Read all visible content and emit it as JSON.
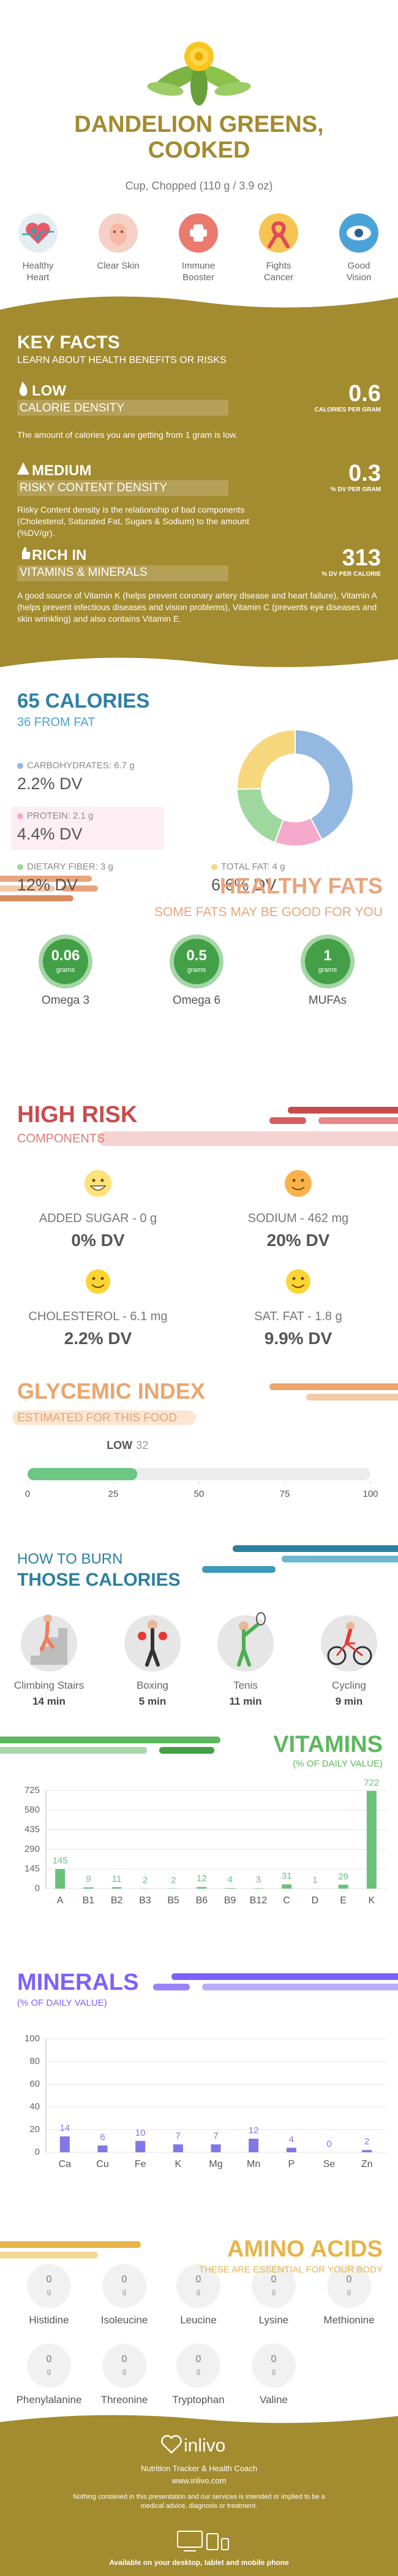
{
  "header": {
    "title": "DANDELION GREENS, COOKED",
    "serving": "Cup, Chopped (110 g / 3.9 oz)",
    "benefits": [
      "Healthy Heart",
      "Clear Skin",
      "Immune Booster",
      "Fights Cancer",
      "Good Vision"
    ]
  },
  "key_facts": {
    "title": "KEY FACTS",
    "subtitle": "LEARN ABOUT HEALTH BENEFITS OR RISKS",
    "items": [
      {
        "level": "LOW",
        "label": "CALORIE DENSITY",
        "value": 0.6,
        "unit": "CALORIES PER GRAM",
        "text": "The amount of calories you are getting from 1 gram is low."
      },
      {
        "level": "MEDIUM",
        "label": "RISKY CONTENT DENSITY",
        "value": 0.3,
        "unit": "% DV PER GRAM",
        "text": "Risky Content density is the relationship of bad components (Cholesterol, Saturated Fat, Sugars & Sodium) to the amount (%DV/gr)."
      },
      {
        "level": "RICH IN",
        "label": "VITAMINS & MINERALS",
        "value": 313,
        "unit": "% DV PER CALORIE",
        "text": "A good source of Vitamin K (helps prevent coronary artery disease and heart failure), Vitamin A (helps prevent infectious diseases and vision problems), Vitamin C (prevents eye diseases and skin wrinkling) and also contains Vitamin E."
      }
    ]
  },
  "chart_data": [
    {
      "type": "pie",
      "title": "65 CALORIES",
      "subtitle": "36 FROM FAT",
      "values": [
        6.7,
        2.1,
        3,
        4
      ],
      "value_labels": [
        "CARBOHYDRATES: 6.7 g",
        "PROTEIN: 2.1 g",
        "DIETARY FIBER: 3 g",
        "TOTAL FAT: 4 g"
      ],
      "dv_labels": [
        "2.2% DV",
        "4.4% DV",
        "12% DV",
        "6.6% DV"
      ],
      "colors": [
        "#93b9e3",
        "#f5a9cb",
        "#9fd89e",
        "#f6d77c"
      ]
    },
    {
      "type": "progress",
      "title": "GLYCEMIC INDEX",
      "subtitle": "ESTIMATED FOR THIS FOOD",
      "label": "LOW",
      "value": 32,
      "xlim": [
        0,
        100
      ],
      "xticks": [
        0,
        25,
        50,
        75,
        100
      ],
      "color": "#6cc784"
    },
    {
      "type": "bar",
      "title": "VITAMINS",
      "subtitle": "(% OF DAILY VALUE)",
      "categories": [
        "A",
        "B1",
        "B2",
        "B3",
        "B5",
        "B6",
        "B9",
        "B12",
        "C",
        "D",
        "E",
        "K"
      ],
      "values": [
        145,
        9,
        11,
        2,
        2,
        12,
        4,
        3,
        31,
        1,
        29,
        722
      ],
      "ylim": [
        0,
        725
      ],
      "yticks": [
        0,
        145,
        290,
        435,
        580,
        725
      ],
      "color": "#6cc17a",
      "grid": true
    },
    {
      "type": "bar",
      "title": "MINERALS",
      "subtitle": "(% OF DAILY VALUE)",
      "categories": [
        "Ca",
        "Cu",
        "Fe",
        "K",
        "Mg",
        "Mn",
        "P",
        "Se",
        "Zn"
      ],
      "values": [
        14,
        6,
        10,
        7,
        7,
        12,
        4,
        0,
        2
      ],
      "ylim": [
        0,
        100
      ],
      "yticks": [
        0,
        20,
        40,
        60,
        80,
        100
      ],
      "color": "#8277e8",
      "grid": true
    }
  ],
  "healthy_fats": {
    "title": "HEALTHY FATS",
    "subtitle": "SOME FATS MAY BE GOOD FOR YOU",
    "items": [
      {
        "value": 0.06,
        "unit": "grams",
        "name": "Omega 3"
      },
      {
        "value": 0.5,
        "unit": "grams",
        "name": "Omega 6"
      },
      {
        "value": 1,
        "unit": "grams",
        "name": "MUFAs"
      }
    ]
  },
  "high_risk": {
    "title": "HIGH RISK",
    "subtitle": "COMPONENTS",
    "items": [
      {
        "label": "ADDED SUGAR - 0 g",
        "dv": "0% DV"
      },
      {
        "label": "SODIUM - 462 mg",
        "dv": "20% DV"
      },
      {
        "label": "CHOLESTEROL - 6.1 mg",
        "dv": "2.2% DV"
      },
      {
        "label": "SAT. FAT - 1.8 g",
        "dv": "9.9% DV"
      }
    ]
  },
  "burn": {
    "title": "HOW TO BURN",
    "subtitle": "THOSE CALORIES",
    "items": [
      {
        "name": "Climbing Stairs",
        "time": "14 min"
      },
      {
        "name": "Boxing",
        "time": "5 min"
      },
      {
        "name": "Tenis",
        "time": "11 min"
      },
      {
        "name": "Cycling",
        "time": "9 min"
      }
    ]
  },
  "amino_acids": {
    "title": "AMINO ACIDS",
    "subtitle": "THESE ARE ESSENTIAL FOR YOUR BODY",
    "items": [
      {
        "name": "Histidine",
        "value": 0,
        "unit": "g"
      },
      {
        "name": "Isoleucine",
        "value": 0,
        "unit": "g"
      },
      {
        "name": "Leucine",
        "value": 0,
        "unit": "g"
      },
      {
        "name": "Lysine",
        "value": 0,
        "unit": "g"
      },
      {
        "name": "Methionine",
        "value": 0,
        "unit": "g"
      },
      {
        "name": "Phenylalanine",
        "value": 0,
        "unit": "g"
      },
      {
        "name": "Threonine",
        "value": 0,
        "unit": "g"
      },
      {
        "name": "Tryptophan",
        "value": 0,
        "unit": "g"
      },
      {
        "name": "Valine",
        "value": 0,
        "unit": "g"
      }
    ]
  },
  "footer": {
    "brand": "inlivo",
    "tagline": "Nutrition Tracker & Health Coach",
    "url": "www.inlivo.com",
    "disclaimer": "Nothing contained in this presentation and our services is intended or implied to be a medical advice, diagnosis or treatment.",
    "availability": "Available on your desktop, tablet and mobile phone"
  }
}
